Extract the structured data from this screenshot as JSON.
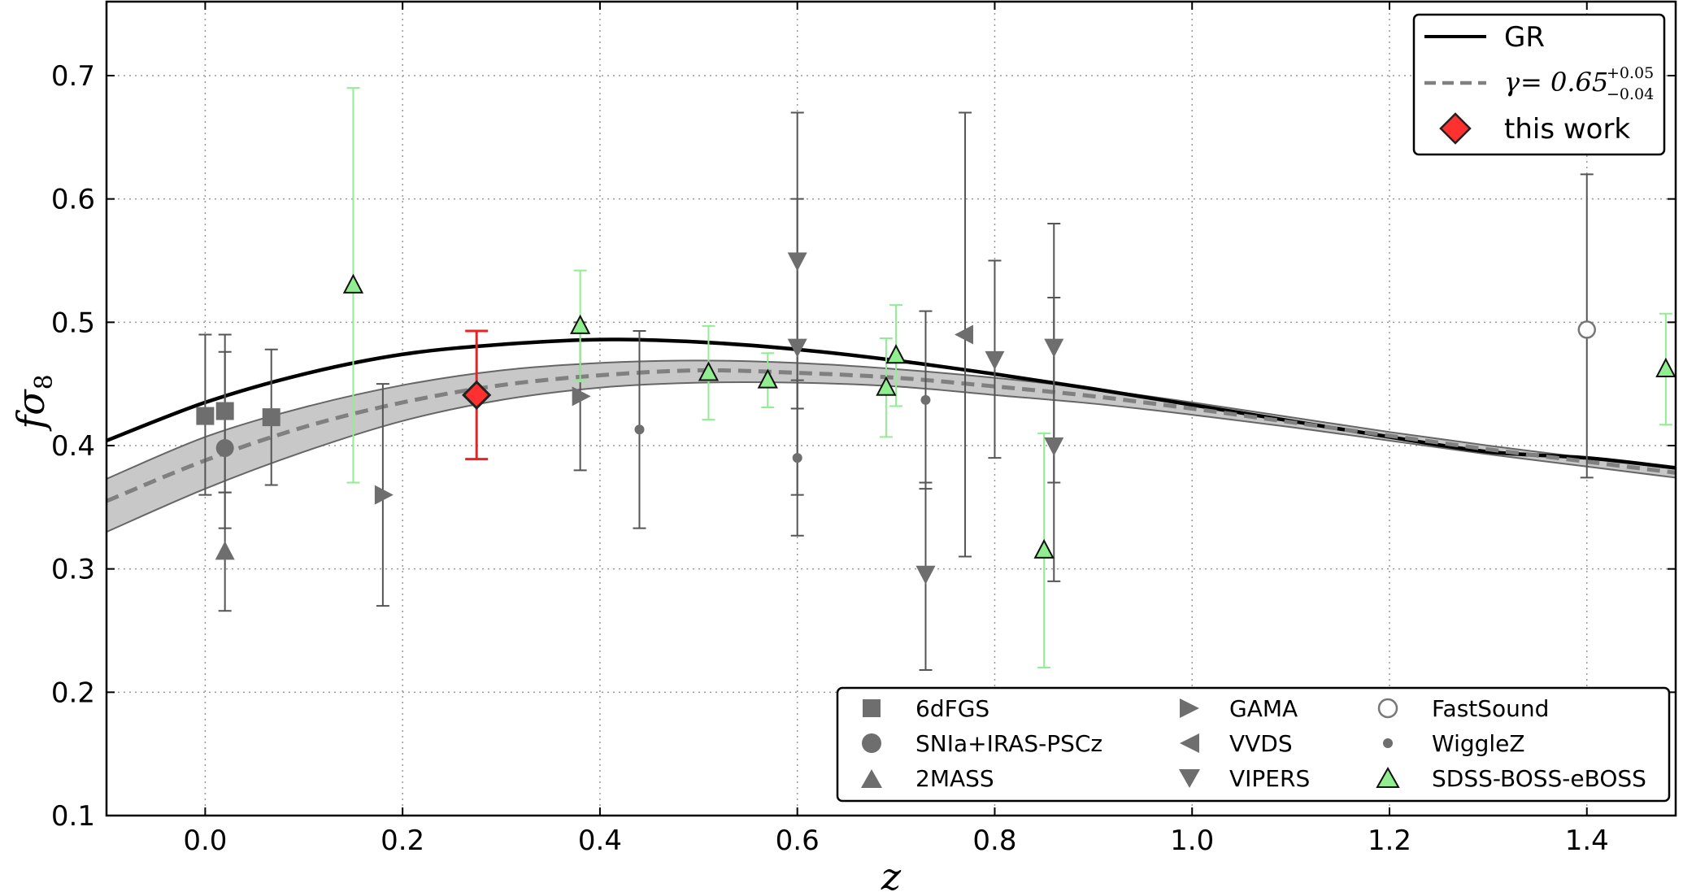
{
  "chart_data": {
    "type": "scatter",
    "title": "",
    "xlabel": "z",
    "ylabel_main": "fσ",
    "ylabel_sub": "8",
    "xlim": [
      -0.1,
      1.49
    ],
    "ylim": [
      0.1,
      0.76
    ],
    "xticks": [
      0.0,
      0.2,
      0.4,
      0.6,
      0.8,
      1.0,
      1.2,
      1.4
    ],
    "xtick_labels": [
      "0.0",
      "0.2",
      "0.4",
      "0.6",
      "0.8",
      "1.0",
      "1.2",
      "1.4"
    ],
    "yticks": [
      0.1,
      0.2,
      0.3,
      0.4,
      0.5,
      0.6,
      0.7
    ],
    "ytick_labels": [
      "0.1",
      "0.2",
      "0.3",
      "0.4",
      "0.5",
      "0.6",
      "0.7"
    ],
    "grid": true,
    "curves": [
      {
        "name": "GR",
        "style": "solid",
        "color": "#000000",
        "points": [
          [
            -0.1,
            0.404
          ],
          [
            0.0,
            0.435
          ],
          [
            0.1,
            0.458
          ],
          [
            0.2,
            0.474
          ],
          [
            0.3,
            0.482
          ],
          [
            0.4,
            0.486
          ],
          [
            0.5,
            0.484
          ],
          [
            0.6,
            0.478
          ],
          [
            0.7,
            0.469
          ],
          [
            0.8,
            0.458
          ],
          [
            0.9,
            0.446
          ],
          [
            1.0,
            0.433
          ],
          [
            1.1,
            0.42
          ],
          [
            1.2,
            0.407
          ],
          [
            1.3,
            0.395
          ],
          [
            1.4,
            0.39
          ],
          [
            1.49,
            0.382
          ]
        ]
      },
      {
        "name": "gamma-fit",
        "style": "dashed",
        "color": "#808080",
        "points": [
          [
            -0.1,
            0.355
          ],
          [
            0.0,
            0.388
          ],
          [
            0.1,
            0.415
          ],
          [
            0.2,
            0.435
          ],
          [
            0.3,
            0.449
          ],
          [
            0.4,
            0.457
          ],
          [
            0.5,
            0.461
          ],
          [
            0.6,
            0.459
          ],
          [
            0.7,
            0.455
          ],
          [
            0.8,
            0.448
          ],
          [
            0.9,
            0.44
          ],
          [
            1.0,
            0.43
          ],
          [
            1.1,
            0.419
          ],
          [
            1.2,
            0.408
          ],
          [
            1.3,
            0.397
          ],
          [
            1.4,
            0.387
          ],
          [
            1.49,
            0.378
          ]
        ]
      }
    ],
    "band": {
      "color": "#c8c8c8",
      "upper": [
        [
          -0.1,
          0.373
        ],
        [
          0.0,
          0.407
        ],
        [
          0.1,
          0.431
        ],
        [
          0.2,
          0.449
        ],
        [
          0.3,
          0.461
        ],
        [
          0.4,
          0.467
        ],
        [
          0.5,
          0.469
        ],
        [
          0.6,
          0.467
        ],
        [
          0.7,
          0.462
        ],
        [
          0.8,
          0.455
        ],
        [
          0.9,
          0.446
        ],
        [
          1.0,
          0.435
        ],
        [
          1.1,
          0.423
        ],
        [
          1.2,
          0.411
        ],
        [
          1.3,
          0.4
        ],
        [
          1.4,
          0.39
        ],
        [
          1.49,
          0.381
        ]
      ],
      "lower": [
        [
          -0.1,
          0.33
        ],
        [
          0.0,
          0.365
        ],
        [
          0.1,
          0.395
        ],
        [
          0.2,
          0.42
        ],
        [
          0.3,
          0.437
        ],
        [
          0.4,
          0.447
        ],
        [
          0.5,
          0.451
        ],
        [
          0.6,
          0.451
        ],
        [
          0.7,
          0.448
        ],
        [
          0.8,
          0.441
        ],
        [
          0.9,
          0.434
        ],
        [
          1.0,
          0.425
        ],
        [
          1.1,
          0.415
        ],
        [
          1.2,
          0.404
        ],
        [
          1.3,
          0.393
        ],
        [
          1.4,
          0.383
        ],
        [
          1.49,
          0.374
        ]
      ]
    },
    "series": [
      {
        "name": "6dFGS",
        "marker": "square",
        "color": "#6e6e6e",
        "points": [
          {
            "x": 0.0,
            "y": 0.424,
            "lo": 0.36,
            "hi": 0.49
          },
          {
            "x": 0.02,
            "y": 0.428,
            "lo": 0.362,
            "hi": 0.49
          },
          {
            "x": 0.067,
            "y": 0.423,
            "lo": 0.368,
            "hi": 0.478
          }
        ]
      },
      {
        "name": "SNIa+IRAS-PSCz",
        "marker": "circle",
        "color": "#6e6e6e",
        "points": [
          {
            "x": 0.02,
            "y": 0.398,
            "lo": 0.333,
            "hi": 0.476
          }
        ]
      },
      {
        "name": "2MASS",
        "marker": "triangle-up",
        "color": "#6e6e6e",
        "points": [
          {
            "x": 0.02,
            "y": 0.314,
            "lo": 0.266,
            "hi": 0.362
          }
        ]
      },
      {
        "name": "GAMA",
        "marker": "triangle-right",
        "color": "#6e6e6e",
        "points": [
          {
            "x": 0.18,
            "y": 0.36,
            "lo": 0.27,
            "hi": 0.45
          },
          {
            "x": 0.38,
            "y": 0.44,
            "lo": 0.38,
            "hi": 0.5
          }
        ]
      },
      {
        "name": "VVDS",
        "marker": "triangle-left",
        "color": "#6e6e6e",
        "points": [
          {
            "x": 0.77,
            "y": 0.49,
            "lo": 0.31,
            "hi": 0.67
          }
        ]
      },
      {
        "name": "VIPERS",
        "marker": "triangle-down",
        "color": "#6e6e6e",
        "points": [
          {
            "x": 0.6,
            "y": 0.55,
            "lo": 0.43,
            "hi": 0.67
          },
          {
            "x": 0.6,
            "y": 0.48,
            "lo": 0.36,
            "hi": 0.6
          },
          {
            "x": 0.73,
            "y": 0.296,
            "lo": 0.218,
            "hi": 0.37
          },
          {
            "x": 0.8,
            "y": 0.47,
            "lo": 0.39,
            "hi": 0.55
          },
          {
            "x": 0.86,
            "y": 0.48,
            "lo": 0.37,
            "hi": 0.58
          },
          {
            "x": 0.86,
            "y": 0.4,
            "lo": 0.29,
            "hi": 0.52
          }
        ]
      },
      {
        "name": "FastSound",
        "marker": "open-circle",
        "color": "#6e6e6e",
        "points": [
          {
            "x": 1.4,
            "y": 0.494,
            "lo": 0.374,
            "hi": 0.62
          }
        ]
      },
      {
        "name": "WiggleZ",
        "marker": "dot",
        "color": "#6e6e6e",
        "points": [
          {
            "x": 0.44,
            "y": 0.413,
            "lo": 0.333,
            "hi": 0.493
          },
          {
            "x": 0.6,
            "y": 0.39,
            "lo": 0.327,
            "hi": 0.453
          },
          {
            "x": 0.73,
            "y": 0.437,
            "lo": 0.365,
            "hi": 0.509
          }
        ]
      },
      {
        "name": "SDSS-BOSS-eBOSS",
        "marker": "triangle-up-green",
        "color": "#90ee90",
        "points": [
          {
            "x": 0.15,
            "y": 0.53,
            "lo": 0.37,
            "hi": 0.69
          },
          {
            "x": 0.38,
            "y": 0.497,
            "lo": 0.452,
            "hi": 0.542
          },
          {
            "x": 0.51,
            "y": 0.459,
            "lo": 0.421,
            "hi": 0.497
          },
          {
            "x": 0.57,
            "y": 0.453,
            "lo": 0.431,
            "hi": 0.475
          },
          {
            "x": 0.69,
            "y": 0.447,
            "lo": 0.407,
            "hi": 0.487
          },
          {
            "x": 0.7,
            "y": 0.473,
            "lo": 0.432,
            "hi": 0.514
          },
          {
            "x": 0.85,
            "y": 0.315,
            "lo": 0.22,
            "hi": 0.41
          },
          {
            "x": 1.48,
            "y": 0.462,
            "lo": 0.417,
            "hi": 0.507
          }
        ]
      },
      {
        "name": "this work",
        "marker": "diamond-red",
        "color": "#ff3030",
        "points": [
          {
            "x": 0.275,
            "y": 0.441,
            "lo": 0.389,
            "hi": 0.493
          }
        ]
      }
    ],
    "legend_top_right": {
      "gr_label": "GR",
      "gamma_prefix": "γ",
      "gamma_value": "= 0.65",
      "gamma_sup": "+0.05",
      "gamma_sub": "−0.04",
      "this_work_label": "this work"
    },
    "legend_bottom_right": [
      "6dFGS",
      "SNIa+IRAS-PSCz",
      "2MASS",
      "GAMA",
      "VVDS",
      "VIPERS",
      "FastSound",
      "WiggleZ",
      "SDSS-BOSS-eBOSS"
    ]
  }
}
